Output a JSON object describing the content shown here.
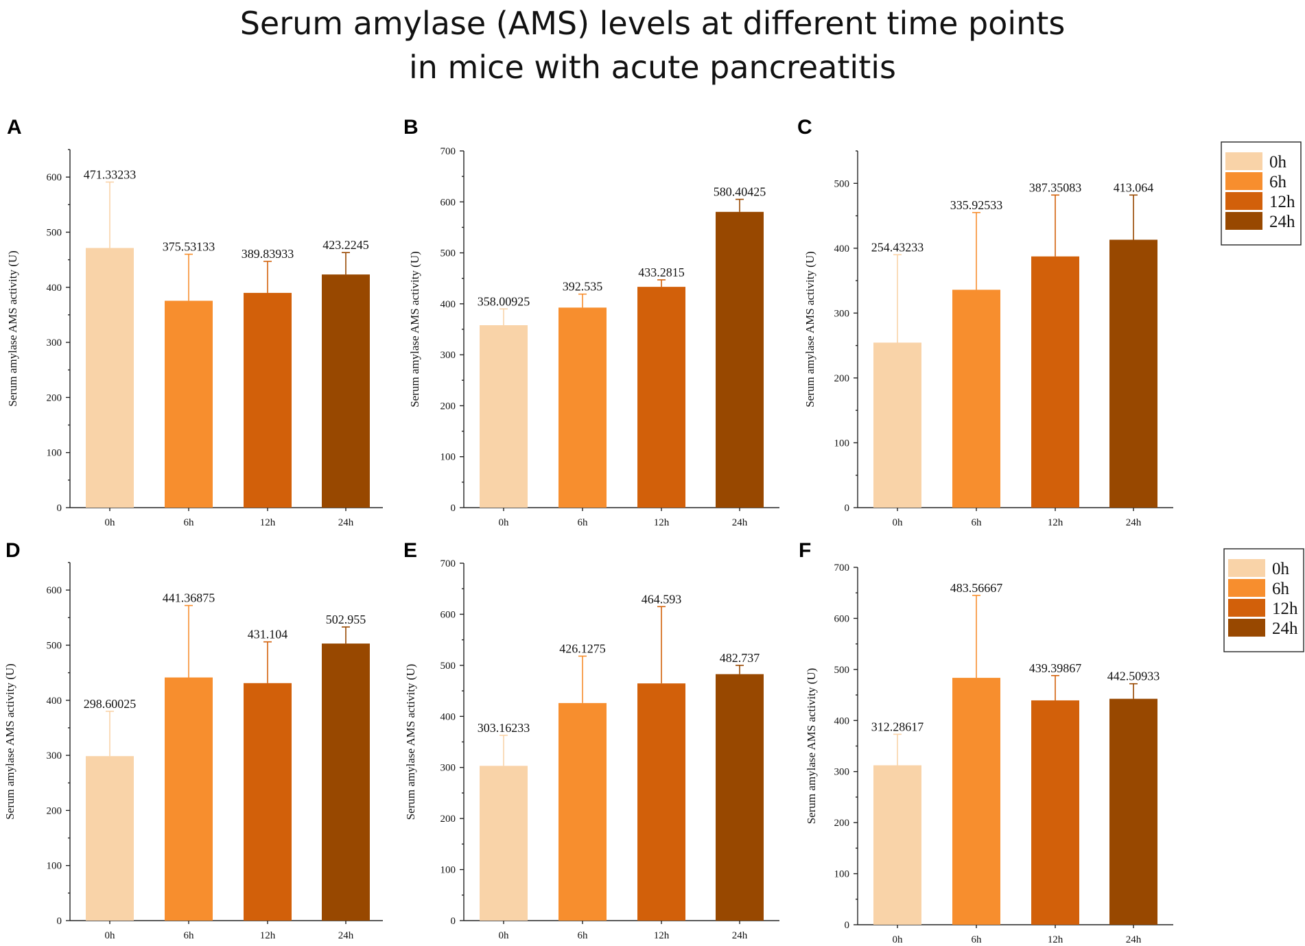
{
  "title": {
    "line1": "Serum amylase (AMS) levels at different time points",
    "line2": "in mice with acute pancreatitis"
  },
  "colors": {
    "0h": "#F9D3A8",
    "6h": "#F78E2E",
    "12h": "#D2600A",
    "24h": "#984800"
  },
  "legend": [
    "0h",
    "6h",
    "12h",
    "24h"
  ],
  "chart_data": [
    {
      "panel": "A",
      "type": "bar",
      "categories": [
        "0h",
        "6h",
        "12h",
        "24h"
      ],
      "values": [
        471.33233,
        375.53133,
        389.83933,
        423.2245
      ],
      "value_labels": [
        "471.33233",
        "375.53133",
        "389.83933",
        "423.2245"
      ],
      "error_upper": [
        591,
        460,
        447,
        463
      ],
      "ylabel": "Serum amylase AMS activity (U)",
      "ylim": [
        0,
        650
      ],
      "yticks": [
        0,
        100,
        200,
        300,
        400,
        500,
        600
      ]
    },
    {
      "panel": "B",
      "type": "bar",
      "categories": [
        "0h",
        "6h",
        "12h",
        "24h"
      ],
      "values": [
        358.00925,
        392.535,
        433.2815,
        580.40425
      ],
      "value_labels": [
        "358.00925",
        "392.535",
        "433.2815",
        "580.40425"
      ],
      "error_upper": [
        390,
        419,
        447,
        605
      ],
      "ylabel": "Serum amylase AMS activity (U)",
      "ylim": [
        0,
        700
      ],
      "yticks": [
        0,
        100,
        200,
        300,
        400,
        500,
        600,
        700
      ]
    },
    {
      "panel": "C",
      "type": "bar",
      "categories": [
        "0h",
        "6h",
        "12h",
        "24h"
      ],
      "values": [
        254.43233,
        335.92533,
        387.35083,
        413.064
      ],
      "value_labels": [
        "254.43233",
        "335.92533",
        "387.35083",
        "413.064"
      ],
      "error_upper": [
        390,
        455,
        482,
        482
      ],
      "ylabel": "Serum amylase AMS activity (U)",
      "ylim": [
        0,
        550
      ],
      "yticks": [
        0,
        100,
        200,
        300,
        400,
        500
      ]
    },
    {
      "panel": "D",
      "type": "bar",
      "categories": [
        "0h",
        "6h",
        "12h",
        "24h"
      ],
      "values": [
        298.60025,
        441.36875,
        431.104,
        502.955
      ],
      "value_labels": [
        "298.60025",
        "441.36875",
        "431.104",
        "502.955"
      ],
      "error_upper": [
        380,
        572,
        506,
        533
      ],
      "ylabel": "Serum amylase AMS activity (U)",
      "ylim": [
        0,
        650
      ],
      "yticks": [
        0,
        100,
        200,
        300,
        400,
        500,
        600
      ]
    },
    {
      "panel": "E",
      "type": "bar",
      "categories": [
        "0h",
        "6h",
        "12h",
        "24h"
      ],
      "values": [
        303.16233,
        426.1275,
        464.593,
        482.737
      ],
      "value_labels": [
        "303.16233",
        "426.1275",
        "464.593",
        "482.737"
      ],
      "error_upper": [
        363,
        518,
        615,
        500
      ],
      "ylabel": "Serum amylase AMS activity (U)",
      "ylim": [
        0,
        700
      ],
      "yticks": [
        0,
        100,
        200,
        300,
        400,
        500,
        600,
        700
      ]
    },
    {
      "panel": "F",
      "type": "bar",
      "categories": [
        "0h",
        "6h",
        "12h",
        "24h"
      ],
      "values": [
        312.28617,
        483.56667,
        439.39867,
        442.50933
      ],
      "value_labels": [
        "312.28617",
        "483.56667",
        "439.39867",
        "442.50933"
      ],
      "error_upper": [
        373,
        645,
        488,
        472
      ],
      "ylabel": "Serum amylase AMS activity (U)",
      "ylim": [
        0,
        700
      ],
      "yticks": [
        0,
        100,
        200,
        300,
        400,
        500,
        600,
        700
      ]
    }
  ]
}
